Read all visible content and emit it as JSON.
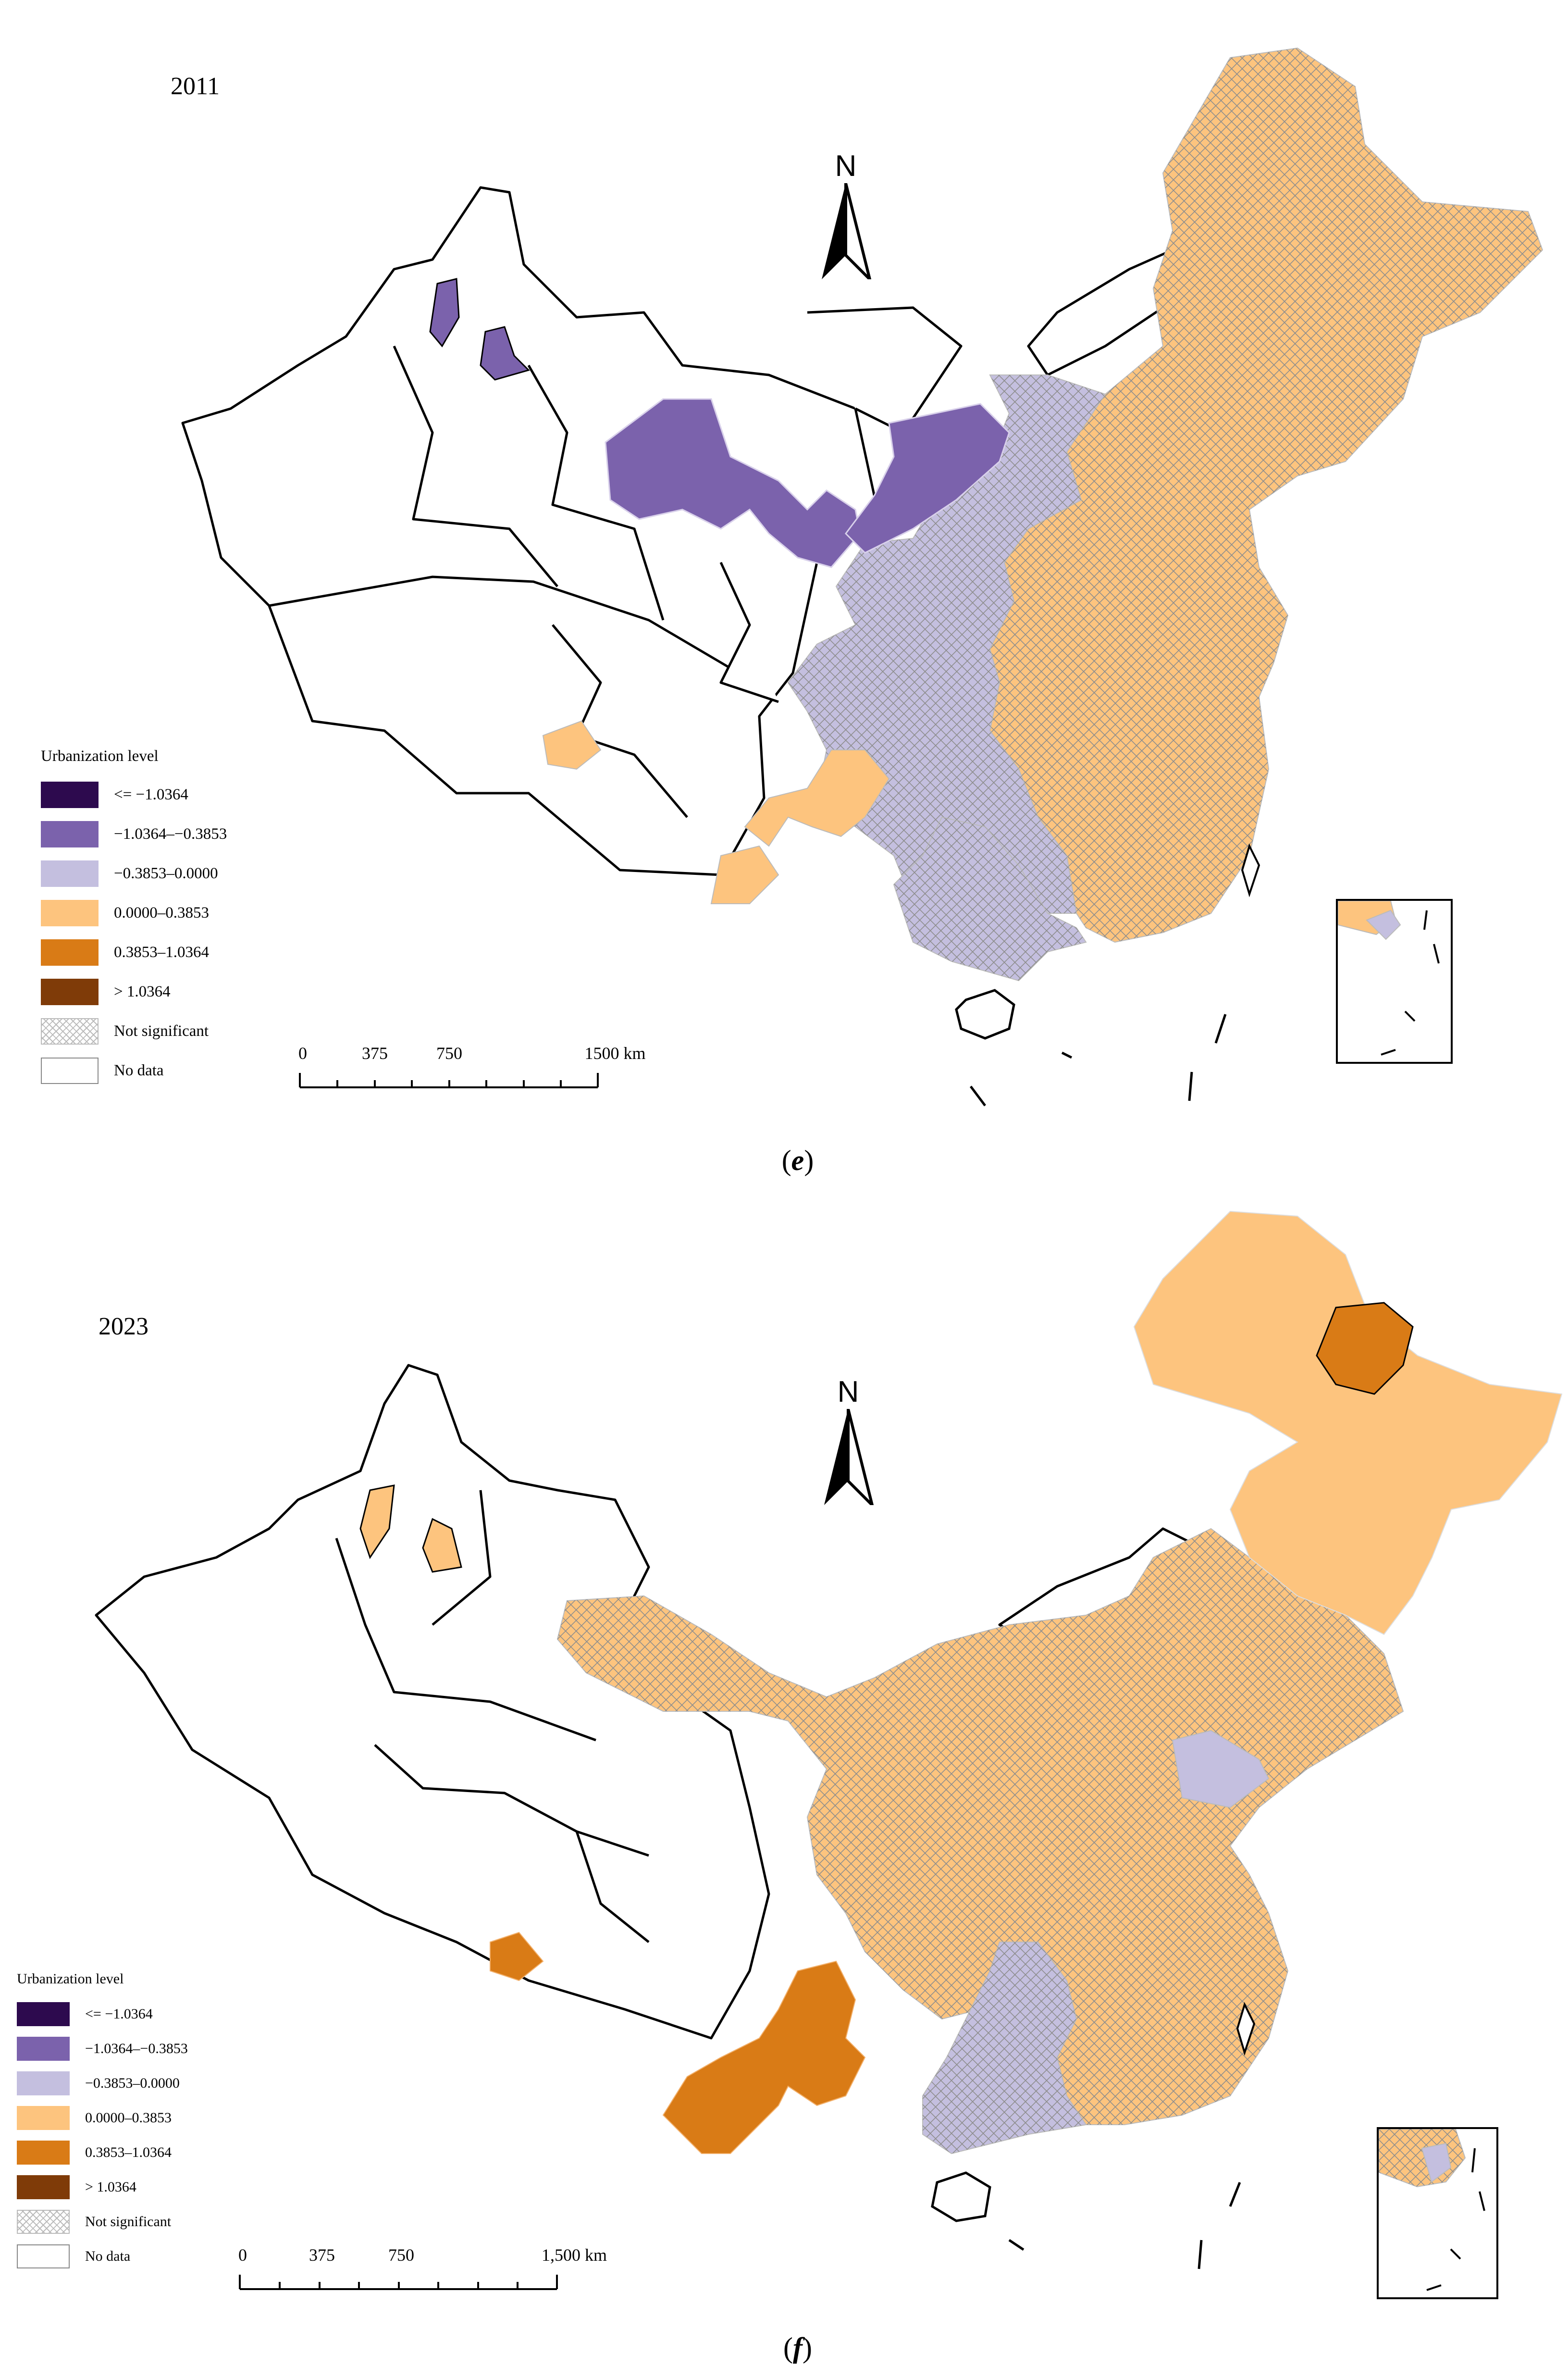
{
  "figure": {
    "panels": [
      {
        "year": "2011",
        "label_letter": "e",
        "legend_title": "Urbanization level",
        "scale_labels": [
          "0",
          "375",
          "750",
          "1500 km"
        ],
        "north": "N",
        "regions": {
          "northwest_cluster": "-1.0364–-0.3853",
          "north_central": "-0.3853–0.0000",
          "east_and_northeast": "0.0000–0.3853",
          "southwest_patches": "0.0000–0.3853",
          "south_central": "-0.3853–0.0000"
        }
      },
      {
        "year": "2023",
        "label_letter": "f",
        "legend_title": "Urbanization level",
        "scale_labels": [
          "0",
          "375",
          "750",
          "1,500 km"
        ],
        "north": "N",
        "regions": {
          "heilongjiang_core": "0.3853–1.0364",
          "northeast": "0.0000–0.3853",
          "east_and_central": "0.0000–0.3853",
          "southwest_cluster": "0.3853–1.0364",
          "south_central": "-0.3853–0.0000"
        }
      }
    ],
    "legend_items": [
      {
        "label": "<= −1.0364",
        "color": "#2d0a4e",
        "style": "fill"
      },
      {
        "label": "−1.0364–−0.3853",
        "color": "#7b62ac",
        "style": "fill"
      },
      {
        "label": "−0.3853–0.0000",
        "color": "#c4bfdf",
        "style": "fill"
      },
      {
        "label": "0.0000–0.3853",
        "color": "#fdc47e",
        "style": "fill"
      },
      {
        "label": "0.3853–1.0364",
        "color": "#d97b16",
        "style": "fill"
      },
      {
        "label": "> 1.0364",
        "color": "#7f3b08",
        "style": "fill"
      },
      {
        "label": "Not significant",
        "color": "#bbbbbb",
        "style": "hatch"
      },
      {
        "label": "No data",
        "color": "#ffffff",
        "style": "none"
      }
    ],
    "legend_items_2023": [
      {
        "label": "<= −1.0364"
      },
      {
        "label": "−1.0364–−0.3853"
      },
      {
        "label": "−0.3853–0.0000"
      },
      {
        "label": "0.0000–0.3853"
      },
      {
        "label": "0.3853–1.0364"
      },
      {
        "label": "> 1.0364"
      },
      {
        "label": "Not significant"
      },
      {
        "label": "No data"
      }
    ]
  }
}
